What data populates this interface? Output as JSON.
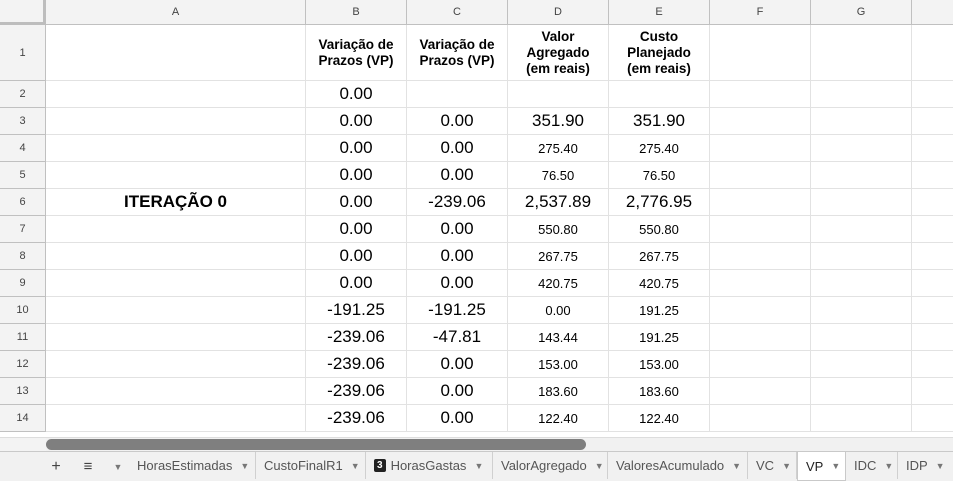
{
  "columns": [
    "A",
    "B",
    "C",
    "D",
    "E",
    "F",
    "G"
  ],
  "header_row": {
    "num": "1",
    "B": "Variação de\nPrazos (VP)",
    "C": "Variação de\nPrazos (VP)",
    "D": "Valor\nAgregado\n(em reais)",
    "E": "Custo\nPlanejado\n(em reais)"
  },
  "rows": [
    {
      "num": "2",
      "A": "",
      "B": "0.00",
      "C": "",
      "D": "",
      "E": ""
    },
    {
      "num": "3",
      "A": "",
      "B": "0.00",
      "C": "0.00",
      "D": "351.90",
      "E": "351.90"
    },
    {
      "num": "4",
      "A": "",
      "B": "0.00",
      "C": "0.00",
      "D": "275.40",
      "E": "275.40"
    },
    {
      "num": "5",
      "A": "",
      "B": "0.00",
      "C": "0.00",
      "D": "76.50",
      "E": "76.50"
    },
    {
      "num": "6",
      "A": "ITERAÇÃO 0",
      "B": "0.00",
      "C": "-239.06",
      "D": "2,537.89",
      "E": "2,776.95"
    },
    {
      "num": "7",
      "A": "",
      "B": "0.00",
      "C": "0.00",
      "D": "550.80",
      "E": "550.80"
    },
    {
      "num": "8",
      "A": "",
      "B": "0.00",
      "C": "0.00",
      "D": "267.75",
      "E": "267.75"
    },
    {
      "num": "9",
      "A": "",
      "B": "0.00",
      "C": "0.00",
      "D": "420.75",
      "E": "420.75"
    },
    {
      "num": "10",
      "A": "",
      "B": "-191.25",
      "C": "-191.25",
      "D": "0.00",
      "E": "191.25"
    },
    {
      "num": "11",
      "A": "",
      "B": "-239.06",
      "C": "-47.81",
      "D": "143.44",
      "E": "191.25"
    },
    {
      "num": "12",
      "A": "",
      "B": "-239.06",
      "C": "0.00",
      "D": "153.00",
      "E": "153.00"
    },
    {
      "num": "13",
      "A": "",
      "B": "-239.06",
      "C": "0.00",
      "D": "183.60",
      "E": "183.60"
    },
    {
      "num": "14",
      "A": "",
      "B": "-239.06",
      "C": "0.00",
      "D": "122.40",
      "E": "122.40"
    }
  ],
  "tabs": [
    {
      "label": "HorasEstimadas",
      "badge": ""
    },
    {
      "label": "CustoFinalR1",
      "badge": ""
    },
    {
      "label": "HorasGastas",
      "badge": "3"
    },
    {
      "label": "ValorAgregado",
      "badge": ""
    },
    {
      "label": "ValoresAcumulado",
      "badge": ""
    },
    {
      "label": "VC",
      "badge": ""
    },
    {
      "label": "VP",
      "badge": ""
    },
    {
      "label": "IDC",
      "badge": ""
    },
    {
      "label": "IDP",
      "badge": ""
    }
  ],
  "active_tab": "VP",
  "add_sheet_icon": "plus-icon",
  "all_sheets_icon": "list-icon"
}
